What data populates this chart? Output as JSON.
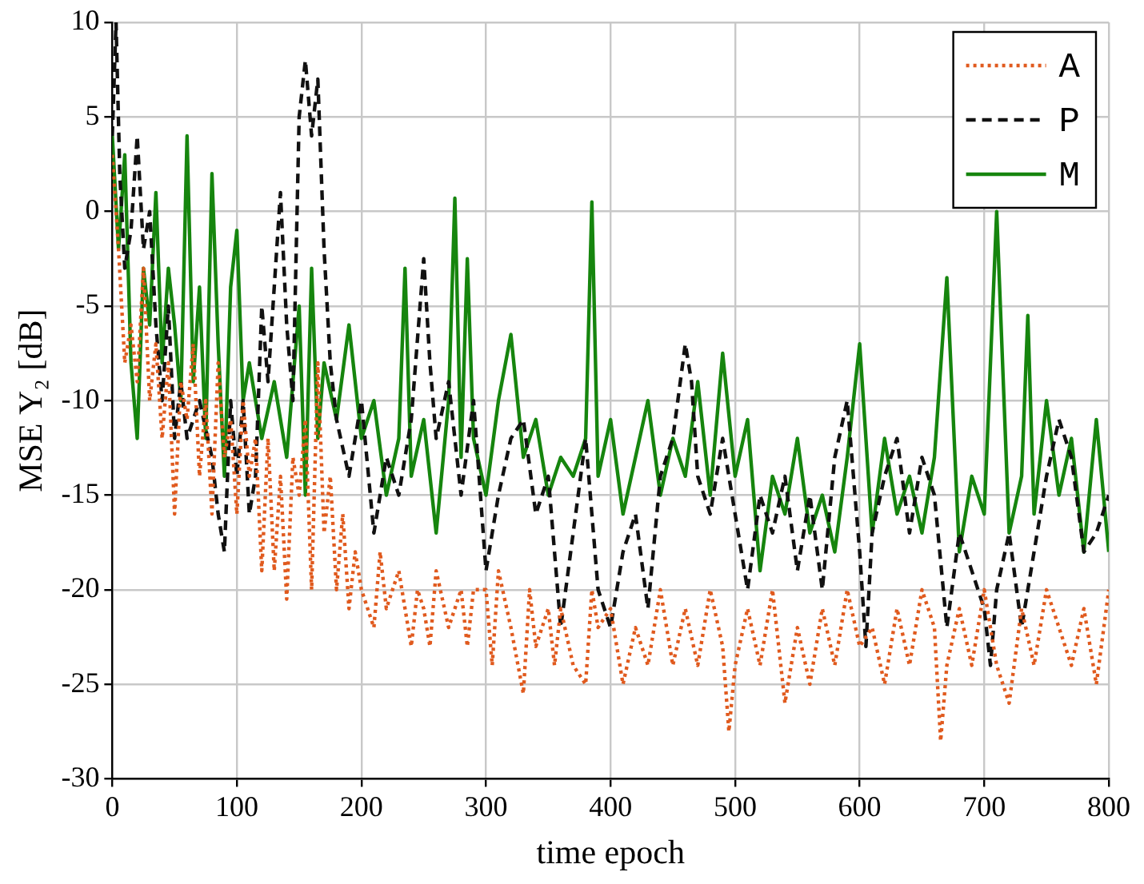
{
  "chart_data": {
    "type": "line",
    "xlabel": "time epoch",
    "ylabel": "MSE Υ₂ [dB]",
    "xlim": [
      0,
      800
    ],
    "ylim": [
      -30,
      10
    ],
    "xticks": [
      0,
      100,
      200,
      300,
      400,
      500,
      600,
      700,
      800
    ],
    "yticks": [
      -30,
      -25,
      -20,
      -15,
      -10,
      -5,
      0,
      5,
      10
    ],
    "grid": true,
    "legend": "top right",
    "marker": "none",
    "series": [
      {
        "name": "A",
        "color": "#e05a1e",
        "line_style": "dotted",
        "x": [
          0,
          5,
          10,
          15,
          20,
          25,
          30,
          35,
          40,
          45,
          50,
          55,
          60,
          65,
          70,
          75,
          80,
          85,
          90,
          95,
          100,
          105,
          110,
          115,
          120,
          125,
          130,
          135,
          140,
          145,
          150,
          155,
          160,
          165,
          170,
          175,
          180,
          185,
          190,
          195,
          200,
          210,
          215,
          220,
          230,
          240,
          245,
          250,
          255,
          260,
          270,
          280,
          285,
          290,
          300,
          305,
          310,
          320,
          330,
          335,
          340,
          350,
          355,
          360,
          370,
          380,
          385,
          390,
          400,
          410,
          420,
          430,
          440,
          450,
          460,
          470,
          480,
          490,
          495,
          500,
          510,
          520,
          530,
          540,
          550,
          560,
          570,
          580,
          590,
          600,
          610,
          620,
          630,
          640,
          650,
          660,
          665,
          670,
          680,
          690,
          700,
          710,
          720,
          730,
          740,
          750,
          760,
          770,
          780,
          790,
          800
        ],
        "values": [
          3,
          -2,
          -8,
          -6,
          -9,
          -3,
          -10,
          -7,
          -12,
          -8,
          -16,
          -9,
          -11,
          -7,
          -14,
          -10,
          -16,
          -8,
          -13,
          -11,
          -16,
          -10,
          -14,
          -12,
          -19,
          -12,
          -19,
          -14,
          -20.5,
          -13,
          -15,
          -11,
          -20,
          -8,
          -17,
          -14,
          -20,
          -16,
          -21,
          -18,
          -20,
          -22,
          -18,
          -21,
          -19,
          -23,
          -20,
          -21,
          -23,
          -19,
          -22,
          -20,
          -23,
          -20,
          -20,
          -24,
          -19,
          -22,
          -25.5,
          -20,
          -23,
          -21,
          -24,
          -21,
          -24,
          -25,
          -20,
          -22,
          -21,
          -25,
          -22,
          -24,
          -20,
          -24,
          -21,
          -24,
          -20,
          -23,
          -27.5,
          -24,
          -21,
          -24,
          -20,
          -26,
          -22,
          -25,
          -21,
          -24,
          -20,
          -23,
          -22,
          -25,
          -21,
          -24,
          -20,
          -22,
          -28,
          -24,
          -21,
          -24,
          -20,
          -24,
          -26,
          -21,
          -24,
          -20,
          -22,
          -24,
          -21,
          -25,
          -20
        ]
      },
      {
        "name": "P",
        "color": "#111111",
        "line_style": "dashed",
        "x": [
          0,
          3,
          6,
          10,
          15,
          20,
          25,
          30,
          35,
          40,
          45,
          50,
          55,
          60,
          70,
          80,
          85,
          90,
          95,
          100,
          105,
          110,
          115,
          120,
          125,
          130,
          135,
          140,
          145,
          150,
          155,
          160,
          165,
          170,
          175,
          180,
          190,
          200,
          210,
          220,
          230,
          240,
          250,
          255,
          260,
          270,
          280,
          290,
          300,
          310,
          320,
          330,
          340,
          350,
          360,
          370,
          380,
          390,
          400,
          410,
          420,
          430,
          440,
          450,
          460,
          465,
          470,
          480,
          490,
          500,
          510,
          520,
          530,
          540,
          550,
          560,
          570,
          580,
          590,
          600,
          605,
          610,
          620,
          630,
          640,
          650,
          660,
          670,
          680,
          690,
          700,
          705,
          710,
          720,
          730,
          740,
          750,
          760,
          770,
          780,
          790,
          800
        ],
        "values": [
          4,
          10,
          2,
          -3,
          -1,
          4,
          -2,
          0,
          -6,
          -10,
          -5,
          -12,
          -9,
          -12,
          -10,
          -13,
          -16,
          -18,
          -10,
          -14,
          -10,
          -16,
          -14,
          -5,
          -9,
          -4,
          1,
          -6,
          -10,
          5,
          8,
          4,
          7,
          -2,
          -8,
          -11,
          -14,
          -10,
          -17,
          -13,
          -15,
          -11,
          -2.5,
          -8,
          -12,
          -9,
          -15,
          -10,
          -19,
          -15,
          -12,
          -11,
          -16,
          -14,
          -22,
          -17,
          -12,
          -20,
          -22,
          -18,
          -16,
          -21,
          -14,
          -12,
          -7,
          -9,
          -14,
          -16,
          -12,
          -16,
          -20,
          -15,
          -17,
          -14,
          -19,
          -15,
          -20,
          -13,
          -10,
          -18,
          -23,
          -17,
          -14,
          -12,
          -17,
          -13,
          -15,
          -22,
          -17,
          -19,
          -21,
          -24,
          -20,
          -17,
          -22,
          -18,
          -14,
          -11,
          -13,
          -18,
          -17,
          -15
        ]
      },
      {
        "name": "M",
        "color": "#16850e",
        "line_style": "solid",
        "x": [
          0,
          5,
          10,
          15,
          20,
          25,
          30,
          35,
          40,
          45,
          50,
          55,
          60,
          65,
          70,
          75,
          80,
          85,
          90,
          95,
          100,
          105,
          110,
          120,
          130,
          140,
          150,
          155,
          160,
          165,
          170,
          180,
          190,
          200,
          210,
          220,
          230,
          235,
          240,
          250,
          260,
          270,
          275,
          280,
          285,
          290,
          300,
          310,
          320,
          330,
          340,
          350,
          360,
          370,
          380,
          385,
          390,
          400,
          410,
          420,
          430,
          440,
          450,
          460,
          470,
          480,
          490,
          500,
          510,
          520,
          530,
          540,
          550,
          560,
          570,
          580,
          590,
          600,
          610,
          620,
          630,
          640,
          650,
          660,
          670,
          680,
          690,
          700,
          710,
          720,
          730,
          735,
          740,
          750,
          760,
          770,
          780,
          790,
          800
        ],
        "values": [
          4,
          -2,
          3,
          -8,
          -12,
          -3,
          -6,
          1,
          -8,
          -3,
          -6,
          -10,
          4,
          -9,
          -4,
          -12,
          2,
          -7,
          -14,
          -4,
          -1,
          -10,
          -8,
          -12,
          -9,
          -13,
          -5,
          -15,
          -3,
          -12,
          -8,
          -11,
          -6,
          -12,
          -10,
          -15,
          -12,
          -3,
          -14,
          -11,
          -17,
          -10,
          0.7,
          -13,
          -2.5,
          -12,
          -15,
          -10,
          -6.5,
          -13,
          -11,
          -15,
          -13,
          -14,
          -12,
          0.5,
          -14,
          -11,
          -16,
          -13,
          -10,
          -15,
          -12,
          -14,
          -9,
          -15,
          -7.5,
          -14,
          -11,
          -19,
          -14,
          -16,
          -12,
          -17,
          -15,
          -18,
          -13,
          -7,
          -17,
          -12,
          -16,
          -14,
          -17,
          -13,
          -3.5,
          -18,
          -14,
          -16,
          0,
          -17,
          -14,
          -5.5,
          -16,
          -10,
          -15,
          -12,
          -18,
          -11,
          -18
        ]
      }
    ]
  }
}
